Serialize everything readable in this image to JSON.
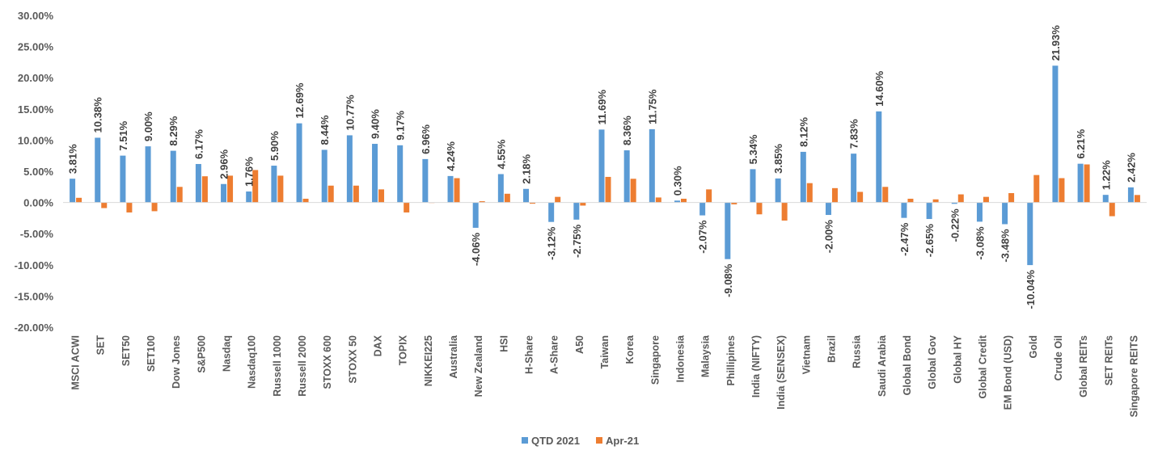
{
  "chart_data": {
    "type": "bar",
    "title": "",
    "xlabel": "",
    "ylabel": "",
    "ylim": [
      -0.2,
      0.3
    ],
    "y_ticks": [
      "30.00%",
      "25.00%",
      "20.00%",
      "15.00%",
      "10.00%",
      "5.00%",
      "0.00%",
      "-5.00%",
      "-10.00%",
      "-15.00%",
      "-20.00%"
    ],
    "grid": false,
    "legend_position": "bottom",
    "colors": {
      "qtd": "#5B9BD5",
      "apr": "#ED7D31"
    },
    "categories": [
      "MSCI ACWI",
      "SET",
      "SET50",
      "SET100",
      "Dow Jones",
      "S&P500",
      "Nasdaq",
      "Nasdaq100",
      "Russell 1000",
      "Russell 2000",
      "STOXX 600",
      "STOXX 50",
      "DAX",
      "TOPIX",
      "NIKKEI225",
      "Australia",
      "New Zealand",
      "HSI",
      "H-Share",
      "A-Share",
      "A50",
      "Taiwan",
      "Korea",
      "Singapore",
      "Indonesia",
      "Malaysia",
      "Phillipines",
      "India (NIFTY)",
      "India (SENSEX)",
      "Vietnam",
      "Brazil",
      "Russia",
      "Saudi Arabia",
      "Global Bond",
      "Global Gov",
      "Global  HY",
      "Global Credit",
      "EM Bond (USD)",
      "Gold",
      "Crude Oil",
      "Global REITs",
      "SET REITs",
      "Singapore REITS"
    ],
    "series": [
      {
        "name": "QTD 2021",
        "values": [
          0.0381,
          0.1038,
          0.0751,
          0.09,
          0.0829,
          0.0617,
          0.0296,
          0.0176,
          0.059,
          0.1269,
          0.0844,
          0.1077,
          0.094,
          0.0917,
          0.0696,
          0.0424,
          -0.0406,
          0.0455,
          0.0218,
          -0.0312,
          -0.0275,
          0.1169,
          0.0836,
          0.1175,
          0.003,
          -0.0207,
          -0.0908,
          0.0534,
          0.0385,
          0.0812,
          -0.02,
          0.0783,
          0.146,
          -0.0247,
          -0.0265,
          -0.0022,
          -0.0308,
          -0.0348,
          -0.1004,
          0.2193,
          0.0621,
          0.0122,
          0.0242
        ],
        "labels": [
          "3.81%",
          "10.38%",
          "7.51%",
          "9.00%",
          "8.29%",
          "6.17%",
          "2.96%",
          "1.76%",
          "5.90%",
          "12.69%",
          "8.44%",
          "10.77%",
          "9.40%",
          "9.17%",
          "6.96%",
          "4.24%",
          "-4.06%",
          "4.55%",
          "2.18%",
          "-3.12%",
          "-2.75%",
          "11.69%",
          "8.36%",
          "11.75%",
          "0.30%",
          "-2.07%",
          "-9.08%",
          "5.34%",
          "3.85%",
          "8.12%",
          "-2.00%",
          "7.83%",
          "14.60%",
          "-2.47%",
          "-2.65%",
          "-0.22%",
          "-3.08%",
          "-3.48%",
          "-10.04%",
          "21.93%",
          "6.21%",
          "1.22%",
          "2.42%"
        ]
      },
      {
        "name": "Apr-21",
        "values": [
          0.0075,
          -0.009,
          -0.016,
          -0.014,
          0.025,
          0.042,
          0.043,
          0.052,
          0.043,
          0.006,
          0.027,
          0.027,
          0.021,
          -0.016,
          0.0,
          0.039,
          0.002,
          0.014,
          -0.002,
          0.009,
          -0.005,
          0.041,
          0.038,
          0.008,
          0.006,
          0.021,
          -0.003,
          -0.019,
          -0.029,
          0.031,
          0.023,
          0.017,
          0.025,
          0.006,
          0.005,
          0.013,
          0.009,
          0.015,
          0.044,
          0.039,
          0.061,
          -0.022,
          0.012
        ]
      }
    ]
  }
}
